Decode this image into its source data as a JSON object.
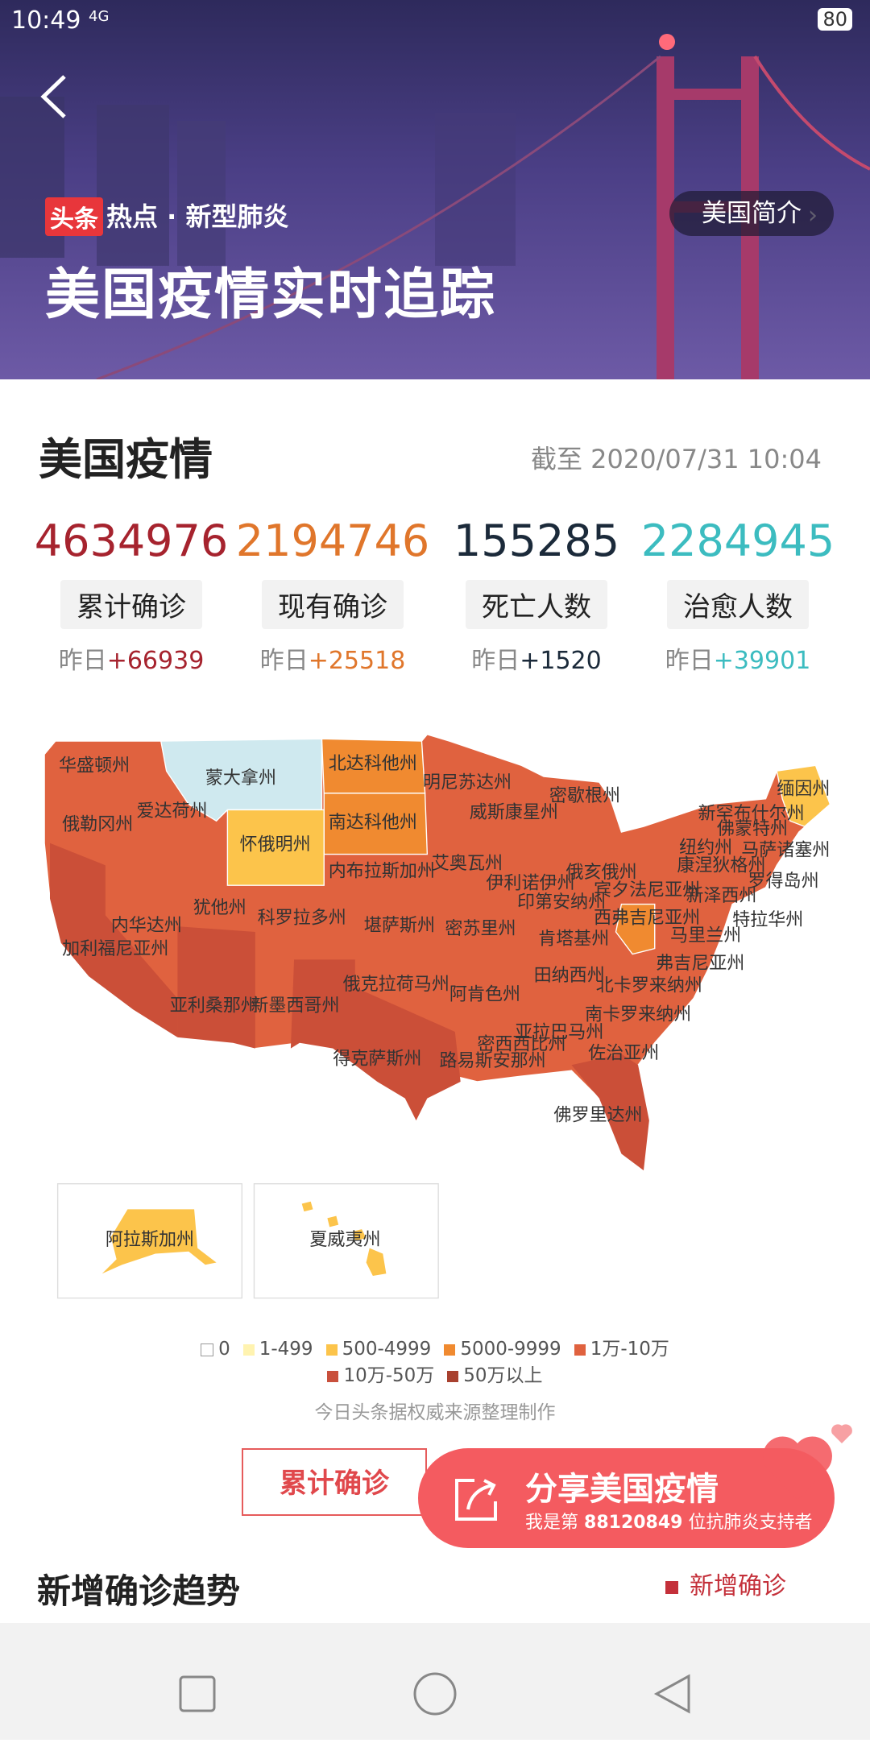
{
  "status_bar": {
    "time": "10:49",
    "network": "4G",
    "battery": "80"
  },
  "header": {
    "badge": "头条",
    "tag": "热点 · 新型肺炎",
    "intro_button": "美国简介",
    "title": "美国疫情实时追踪"
  },
  "summary": {
    "title": "美国疫情",
    "as_of": "截至 2020/07/31 10:04",
    "stats": [
      {
        "value": 4634976,
        "label": "累计确诊",
        "prefix": "昨日",
        "delta": "+66939"
      },
      {
        "value": 2194746,
        "label": "现有确诊",
        "prefix": "昨日",
        "delta": "+25518"
      },
      {
        "value": 155285,
        "label": "死亡人数",
        "prefix": "昨日",
        "delta": "+1520"
      },
      {
        "value": 2284945,
        "label": "治愈人数",
        "prefix": "昨日",
        "delta": "+39901"
      }
    ]
  },
  "map": {
    "states": [
      "华盛顿州",
      "蒙大拿州",
      "北达科他州",
      "明尼苏达州",
      "密歇根州",
      "缅因州",
      "新罕布什尔州",
      "佛蒙特州",
      "俄勒冈州",
      "爱达荷州",
      "南达科他州",
      "威斯康星州",
      "纽约州",
      "马萨诸塞州",
      "怀俄明州",
      "康涅狄格州",
      "罗得岛州",
      "内布拉斯加州",
      "艾奥瓦州",
      "伊利诺伊州",
      "俄亥俄州",
      "宾夕法尼亚州",
      "新泽西州",
      "印第安纳州",
      "犹他州",
      "科罗拉多州",
      "内华达州",
      "加利福尼亚州",
      "堪萨斯州",
      "密苏里州",
      "西弗吉尼亚州",
      "马里兰州",
      "特拉华州",
      "肯塔基州",
      "弗吉尼亚州",
      "田纳西州",
      "北卡罗来纳州",
      "俄克拉荷马州",
      "阿肯色州",
      "亚利桑那州",
      "新墨西哥州",
      "南卡罗来纳州",
      "亚拉巴马州",
      "密西西比州",
      "佐治亚州",
      "得克萨斯州",
      "路易斯安那州",
      "佛罗里达州",
      "阿拉斯加州",
      "夏威夷州"
    ],
    "legend": [
      "0",
      "1-499",
      "500-4999",
      "5000-9999",
      "1万-10万",
      "10万-50万",
      "50万以上"
    ],
    "source": "今日头条据权威来源整理制作"
  },
  "actions": {
    "cumulative": "累计确诊",
    "share_title": "分享美国疫情",
    "share_prefix": "我是第",
    "supporter_number": "88120849",
    "share_suffix": "位抗肺炎支持者"
  },
  "trend": {
    "title": "新增确诊趋势",
    "legend": "新增确诊"
  }
}
